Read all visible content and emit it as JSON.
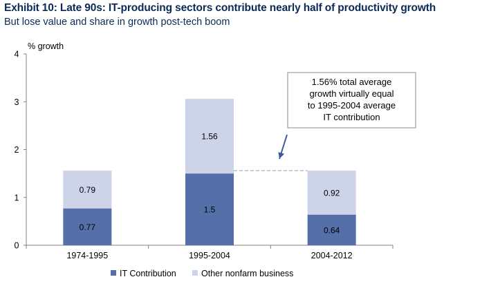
{
  "title": "Exhibit 10: Late 90s: IT-producing sectors contribute nearly half of productivity growth",
  "subtitle": "But lose value and share in growth post-tech boom",
  "chart_data": {
    "type": "bar",
    "stacked": true,
    "ylabel": "% growth",
    "ylim": [
      0,
      4
    ],
    "yticks": [
      "0",
      "1",
      "2",
      "3",
      "4"
    ],
    "grid": false,
    "categories": [
      "1974-1995",
      "1995-2004",
      "2004-2012"
    ],
    "series": [
      {
        "name": "IT Contribution",
        "values": [
          0.77,
          1.5,
          0.64
        ],
        "labels": [
          "0.77",
          "1.5",
          "0.64"
        ],
        "color": "#5570a8"
      },
      {
        "name": "Other nonfarm business",
        "values": [
          0.79,
          1.56,
          0.92
        ],
        "labels": [
          "0.79",
          "1.56",
          "0.92"
        ],
        "color": "#cdd3e8"
      }
    ],
    "reference_line": {
      "value": 1.56,
      "from_category": 1,
      "to_category": 2,
      "style": "dashed"
    },
    "annotation": {
      "lines": [
        "1.56% total average",
        "growth virtually equal",
        "to 1995-2004 average",
        "IT contribution"
      ],
      "points_to_category": 2
    },
    "legend_placement": "bottom"
  }
}
